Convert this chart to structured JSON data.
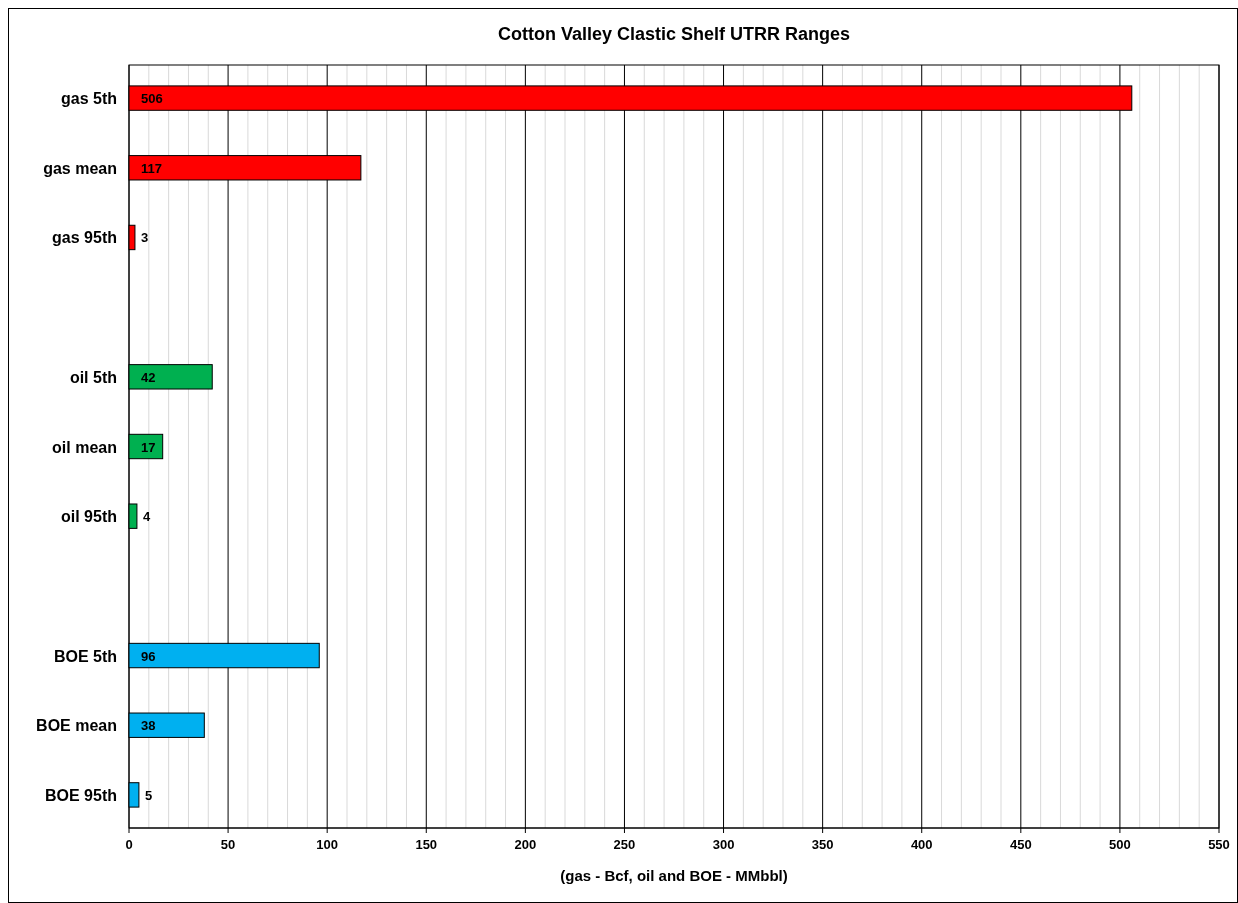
{
  "chart_data": {
    "type": "bar",
    "orientation": "horizontal",
    "title": "Cotton Valley Clastic Shelf UTRR Ranges",
    "xlabel": "(gas - Bcf, oil and BOE - MMbbl)",
    "categories": [
      "gas 5th",
      "gas mean",
      "gas 95th",
      null,
      "oil 5th",
      "oil mean",
      "oil 95th",
      null,
      "BOE 5th",
      "BOE mean",
      "BOE 95th"
    ],
    "values": [
      506,
      117,
      3,
      null,
      42,
      17,
      4,
      null,
      96,
      38,
      5
    ],
    "colors": [
      "#ff0000",
      "#ff0000",
      "#ff0000",
      null,
      "#00b050",
      "#00b050",
      "#00b050",
      null,
      "#00b0f0",
      "#00b0f0",
      "#00b0f0"
    ],
    "xlim": [
      0,
      550
    ],
    "xticks": [
      0,
      {
        "value": 10,
        "label": null
      },
      {
        "value": 20,
        "label": null
      },
      {
        "value": 30,
        "label": null
      },
      {
        "value": 40,
        "label": null
      },
      50,
      {
        "value": 60,
        "label": null
      },
      {
        "value": 70,
        "label": null
      },
      {
        "value": 80,
        "label": null
      },
      {
        "value": 90,
        "label": null
      },
      100,
      {
        "value": 110,
        "label": null
      },
      {
        "value": 120,
        "label": null
      },
      {
        "value": 130,
        "label": null
      },
      {
        "value": 140,
        "label": null
      },
      150,
      {
        "value": 160,
        "label": null
      },
      {
        "value": 170,
        "label": null
      },
      {
        "value": 180,
        "label": null
      },
      {
        "value": 190,
        "label": null
      },
      200,
      {
        "value": 210,
        "label": null
      },
      {
        "value": 220,
        "label": null
      },
      {
        "value": 230,
        "label": null
      },
      {
        "value": 240,
        "label": null
      },
      250,
      {
        "value": 260,
        "label": null
      },
      {
        "value": 270,
        "label": null
      },
      {
        "value": 280,
        "label": null
      },
      {
        "value": 290,
        "label": null
      },
      300,
      {
        "value": 310,
        "label": null
      },
      {
        "value": 320,
        "label": null
      },
      {
        "value": 330,
        "label": null
      },
      {
        "value": 340,
        "label": null
      },
      350,
      {
        "value": 360,
        "label": null
      },
      {
        "value": 370,
        "label": null
      },
      {
        "value": 380,
        "label": null
      },
      {
        "value": 390,
        "label": null
      },
      400,
      {
        "value": 410,
        "label": null
      },
      {
        "value": 420,
        "label": null
      },
      {
        "value": 430,
        "label": null
      },
      {
        "value": 440,
        "label": null
      },
      450,
      {
        "value": 460,
        "label": null
      },
      {
        "value": 470,
        "label": null
      },
      {
        "value": 480,
        "label": null
      },
      {
        "value": 490,
        "label": null
      },
      500,
      {
        "value": 510,
        "label": null
      },
      {
        "value": 520,
        "label": null
      },
      {
        "value": 530,
        "label": null
      },
      {
        "value": 540,
        "label": null
      },
      550
    ],
    "grid": "x",
    "data_labels": true
  }
}
